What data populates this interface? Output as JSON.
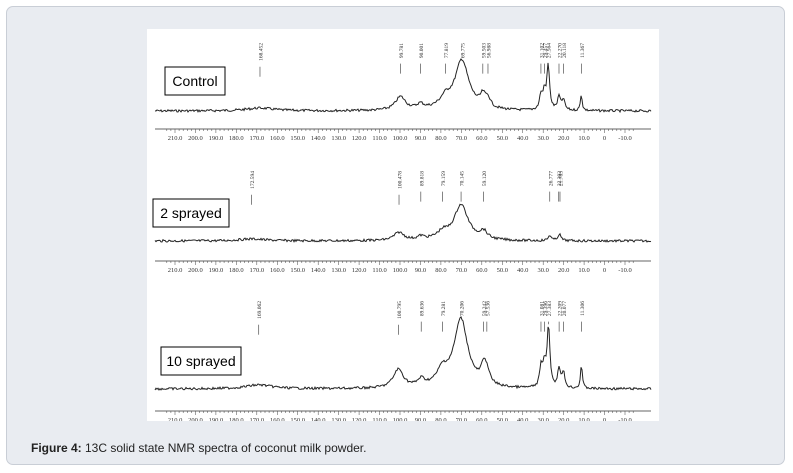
{
  "caption": {
    "prefix": "Figure 4:",
    "text": " 13C solid state NMR spectra of coconut milk powder."
  },
  "chart_data": {
    "type": "line",
    "x_reversed": true,
    "xlim": [
      -15,
      215
    ],
    "x_ticks": [
      "210.0",
      "200.0",
      "190.0",
      "180.0",
      "170.0",
      "160.0",
      "150.0",
      "140.0",
      "130.0",
      "120.0",
      "110.0",
      "100.0",
      "90.0",
      "80.0",
      "70.0",
      "60.0",
      "50.0",
      "40.0",
      "30.0",
      "20.0",
      "10.0",
      "0",
      "-10.0"
    ],
    "x_tick_values": [
      210,
      200,
      190,
      180,
      170,
      160,
      150,
      140,
      130,
      120,
      110,
      100,
      90,
      80,
      70,
      60,
      50,
      40,
      30,
      20,
      10,
      0,
      -10
    ],
    "panels": [
      {
        "label": "Control",
        "peaks": [
          {
            "ppm": 168.452,
            "label": "168.452",
            "h": 0.06,
            "w": 8
          },
          {
            "ppm": 99.781,
            "label": "99.781",
            "h": 0.28,
            "w": 3
          },
          {
            "ppm": 90.001,
            "label": "90.001",
            "h": 0.1,
            "w": 2
          },
          {
            "ppm": 77.819,
            "label": "77.819",
            "h": 0.18,
            "w": 3
          },
          {
            "ppm": 69.775,
            "label": "69.775",
            "h": 1.0,
            "w": 4
          },
          {
            "ppm": 59.503,
            "label": "59.503",
            "h": 0.22,
            "w": 1.5
          },
          {
            "ppm": 56.988,
            "label": "56.988",
            "h": 0.18,
            "w": 1.5
          },
          {
            "ppm": 31.102,
            "label": "31.102",
            "h": 0.3,
            "w": 0.8
          },
          {
            "ppm": 29.457,
            "label": "29.457",
            "h": 0.34,
            "w": 0.8
          },
          {
            "ppm": 27.564,
            "label": "27.564",
            "h": 0.92,
            "w": 0.8
          },
          {
            "ppm": 22.27,
            "label": "22.270",
            "h": 0.28,
            "w": 0.8
          },
          {
            "ppm": 20.118,
            "label": "20.118",
            "h": 0.22,
            "w": 0.8
          },
          {
            "ppm": 11.367,
            "label": "11.367",
            "h": 0.35,
            "w": 0.5
          }
        ]
      },
      {
        "label": "2 sprayed",
        "peaks": [
          {
            "ppm": 172.594,
            "label": "172.594",
            "h": 0.05,
            "w": 8
          },
          {
            "ppm": 100.478,
            "label": "100.478",
            "h": 0.2,
            "w": 3
          },
          {
            "ppm": 89.818,
            "label": "89.818",
            "h": 0.08,
            "w": 2
          },
          {
            "ppm": 79.159,
            "label": "79.159",
            "h": 0.15,
            "w": 3
          },
          {
            "ppm": 70.145,
            "label": "70.145",
            "h": 0.85,
            "w": 4
          },
          {
            "ppm": 59.12,
            "label": "59.120",
            "h": 0.18,
            "w": 2
          },
          {
            "ppm": 26.777,
            "label": "26.777",
            "h": 0.14,
            "w": 0.8
          },
          {
            "ppm": 22.392,
            "label": "22.392",
            "h": 0.1,
            "w": 0.8
          },
          {
            "ppm": 21.783,
            "label": "21.783",
            "h": 0.08,
            "w": 0.8
          }
        ]
      },
      {
        "label": "10 sprayed",
        "peaks": [
          {
            "ppm": 169.062,
            "label": "169.062",
            "h": 0.06,
            "w": 8
          },
          {
            "ppm": 100.795,
            "label": "100.795",
            "h": 0.28,
            "w": 3
          },
          {
            "ppm": 89.636,
            "label": "89.636",
            "h": 0.1,
            "w": 2
          },
          {
            "ppm": 79.281,
            "label": "79.281",
            "h": 0.2,
            "w": 3
          },
          {
            "ppm": 70.206,
            "label": "70.206",
            "h": 1.0,
            "w": 4
          },
          {
            "ppm": 59.242,
            "label": "59.242",
            "h": 0.22,
            "w": 1.5
          },
          {
            "ppm": 57.536,
            "label": "57.536",
            "h": 0.2,
            "w": 1.5
          },
          {
            "ppm": 31.081,
            "label": "31.081",
            "h": 0.3,
            "w": 0.8
          },
          {
            "ppm": 29.396,
            "label": "29.396",
            "h": 0.34,
            "w": 0.8
          },
          {
            "ppm": 27.383,
            "label": "27.383",
            "h": 0.92,
            "w": 0.8
          },
          {
            "ppm": 22.209,
            "label": "22.209",
            "h": 0.3,
            "w": 0.8
          },
          {
            "ppm": 20.077,
            "label": "20.077",
            "h": 0.22,
            "w": 0.8
          },
          {
            "ppm": 11.306,
            "label": "11.306",
            "h": 0.38,
            "w": 0.5
          }
        ]
      }
    ]
  }
}
